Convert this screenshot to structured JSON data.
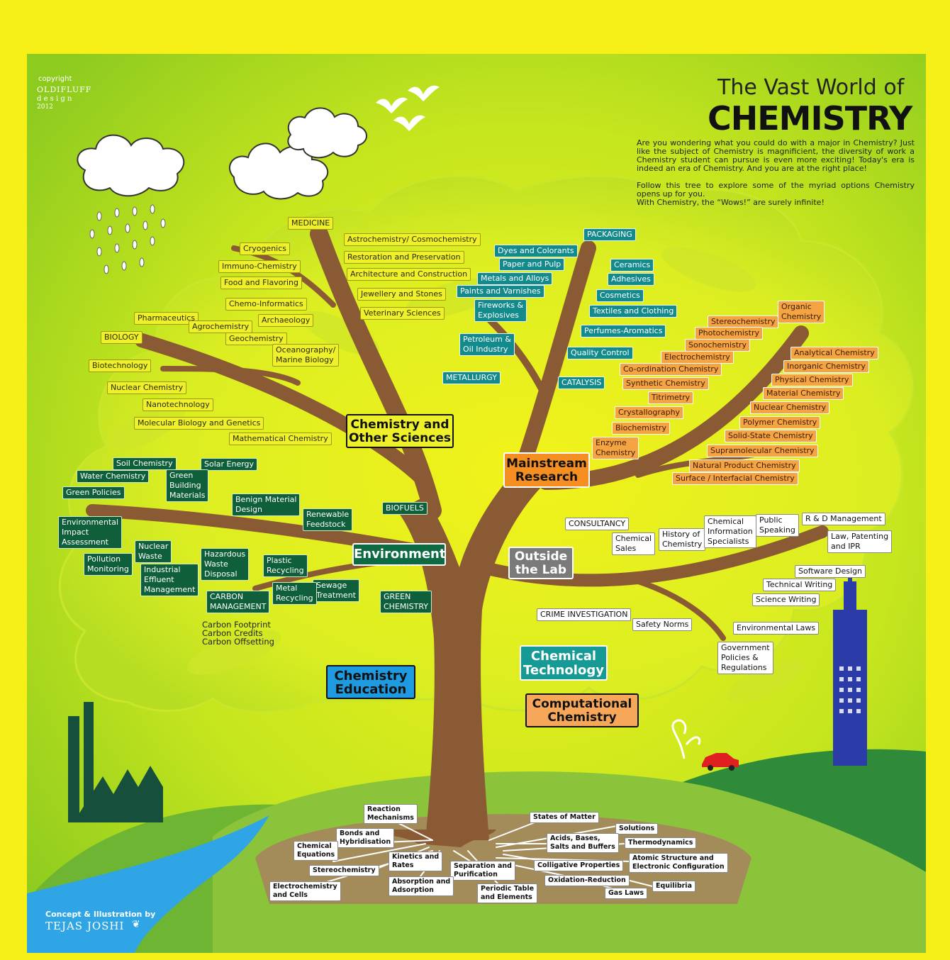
{
  "header": {
    "title_line1": "The Vast World of",
    "title_line2": "CHEMISTRY",
    "intro_p1": "Are you wondering what you could do with a major in Chemistry? Just like the subject of Chemistry is magnificient, the diversity of work a Chemistry student can pursue is even more exciting! Today's era is indeed an era of Chemistry. And you are at the right place!",
    "intro_p2": "Follow this tree to explore some of the myriad options Chemistry opens up for you.",
    "intro_p3": "With Chemistry, the “Wows!” are surely infinite!"
  },
  "copyright": {
    "label": "copyright",
    "brand": "OLDIFLUFF",
    "sub": "d e s i g n",
    "year": "2012"
  },
  "credit": {
    "label": "Concept & Illustration by",
    "name": "TEJAS JOSHI"
  },
  "branches": {
    "other_sciences": "Chemistry and\nOther Sciences",
    "mainstream": "Mainstream\nResearch",
    "environment": "Environment",
    "outside_lab": "Outside\nthe Lab",
    "chem_tech": "Chemical\nTechnology",
    "education": "Chemistry\nEducation",
    "computational": "Computational\nChemistry"
  },
  "colors": {
    "background": "#f6f018",
    "canopy": "#aedc1e",
    "trunk": "#8a5a34",
    "hill": "#8bc43a"
  },
  "other_sciences_items": [
    "MEDICINE",
    "Astrochemistry/ Cosmochemistry",
    "Cryogenics",
    "Restoration and Preservation",
    "Immuno-Chemistry",
    "Architecture and Construction",
    "Food and Flavoring",
    "Jewellery and Stones",
    "Chemo-Informatics",
    "Veterinary Sciences",
    "Pharmaceutics",
    "Archaeology",
    "Agrochemistry",
    "BIOLOGY",
    "Geochemistry",
    "Oceanography/\nMarine Biology",
    "Biotechnology",
    "Nuclear Chemistry",
    "Nanotechnology",
    "Molecular Biology and Genetics",
    "Mathematical Chemistry"
  ],
  "industry_items": [
    "PACKAGING",
    "Dyes and Colorants",
    "Paper and Pulp",
    "Ceramics",
    "Metals and Alloys",
    "Adhesives",
    "Paints and Varnishes",
    "Cosmetics",
    "Fireworks &\nExplosives",
    "Textiles and Clothing",
    "Perfumes-Aromatics",
    "Petroleum &\nOil Industry",
    "Quality Control",
    "METALLURGY",
    "CATALYSIS"
  ],
  "mainstream_items": [
    "Organic\nChemistry",
    "Stereochemistry",
    "Photochemistry",
    "Sonochemistry",
    "Analytical Chemistry",
    "Electrochemistry",
    "Inorganic Chemistry",
    "Co-ordination Chemistry",
    "Physical Chemistry",
    "Synthetic Chemistry",
    "Material Chemistry",
    "Titrimetry",
    "Nuclear Chemistry",
    "Crystallography",
    "Polymer Chemistry",
    "Biochemistry",
    "Solid-State Chemistry",
    "Enzyme\nChemistry",
    "Supramolecular Chemistry",
    "Natural Product Chemistry",
    "Surface / Interfacial Chemistry"
  ],
  "environment_items": [
    "Soil Chemistry",
    "Solar Energy",
    "Water Chemistry",
    "Green\nBuilding\nMaterials",
    "Green Policies",
    "Benign Material\nDesign",
    "Renewable\nFeedstock",
    "BIOFUELS",
    "Environmental\nImpact\nAssessment",
    "Nuclear\nWaste",
    "Pollution\nMonitoring",
    "Industrial\nEffluent\nManagement",
    "Hazardous\nWaste\nDisposal",
    "Plastic\nRecycling",
    "Sewage\nTreatment",
    "Metal\nRecycling",
    "CARBON\nMANAGEMENT",
    "GREEN\nCHEMISTRY"
  ],
  "carbon_list": "Carbon Footprint\nCarbon Credits\nCarbon Offsetting",
  "outside_items": [
    "CONSULTANCY",
    "Chemical\nSales",
    "History of\nChemistry",
    "Chemical\nInformation\nSpecialists",
    "Public\nSpeaking",
    "R & D Management",
    "Law, Patenting\nand IPR",
    "Software Design",
    "Technical Writing",
    "Science Writing",
    "CRIME INVESTIGATION",
    "Safety Norms",
    "Environmental Laws",
    "Government\nPolicies &\nRegulations"
  ],
  "root_items": [
    "Reaction\nMechanisms",
    "Bonds and\nHybridisation",
    "Chemical\nEquations",
    "Kinetics and\nRates",
    "Stereochemistry",
    "Separation and\nPurification",
    "Electrochemistry\nand Cells",
    "Absorption and\nAdsorption",
    "Periodic Table\nand Elements",
    "States of Matter",
    "Solutions",
    "Acids, Bases,\nSalts and Buffers",
    "Thermodynamics",
    "Colligative Properties",
    "Atomic Structure and\nElectronic Configuration",
    "Oxidation-Reduction",
    "Equilibria",
    "Gas Laws"
  ]
}
